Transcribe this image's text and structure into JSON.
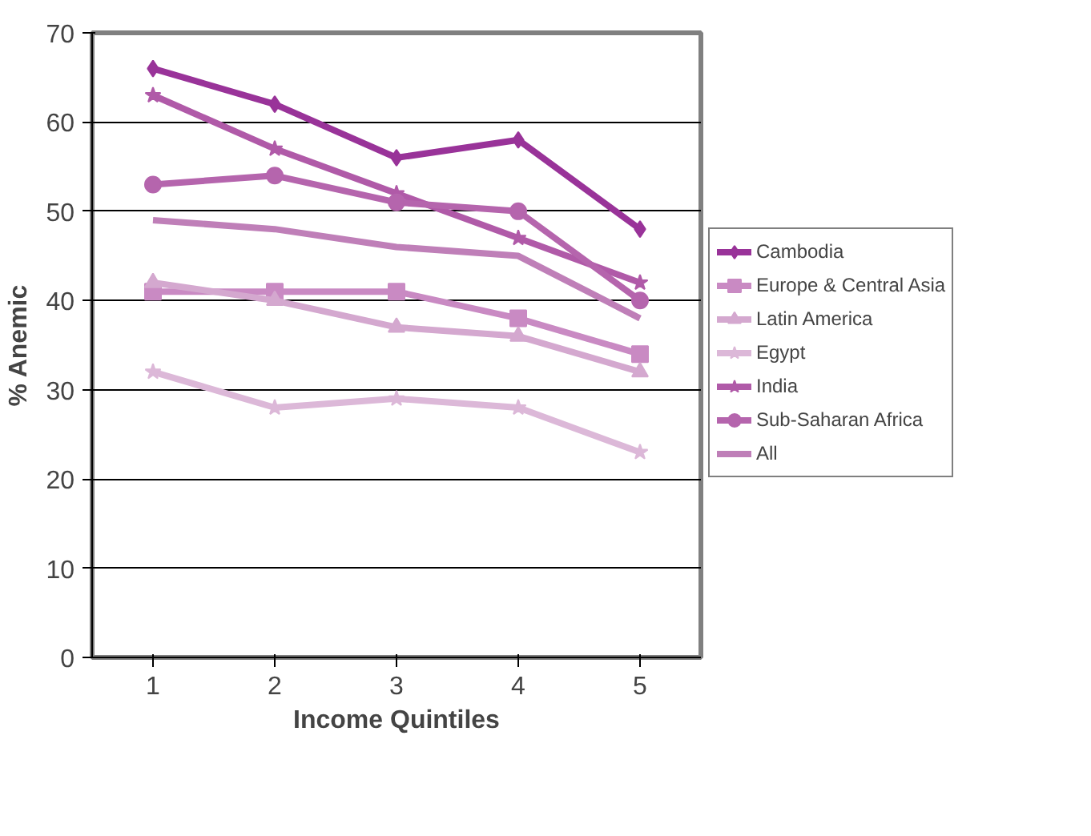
{
  "chart_data": {
    "type": "line",
    "xlabel": "Income Quintiles",
    "ylabel": "% Anemic",
    "x": [
      1,
      2,
      3,
      4,
      5
    ],
    "xlim": [
      0.5,
      5.5
    ],
    "xticks": [
      1,
      2,
      3,
      4,
      5
    ],
    "ylim": [
      0,
      70
    ],
    "yticks": [
      0,
      10,
      20,
      30,
      40,
      50,
      60,
      70
    ],
    "grid": "y",
    "legend": "right",
    "series": [
      {
        "name": "Cambodia",
        "color": "#993399",
        "marker": "diamond",
        "values": [
          66,
          62,
          56,
          58,
          48
        ]
      },
      {
        "name": "Europe & Central Asia",
        "color": "#c98ac3",
        "marker": "square",
        "values": [
          41,
          41,
          41,
          38,
          34
        ]
      },
      {
        "name": "Latin America",
        "color": "#d4a8cf",
        "marker": "triangle",
        "values": [
          42,
          40,
          37,
          36,
          32
        ]
      },
      {
        "name": "Egypt",
        "color": "#dcb8d8",
        "marker": "star",
        "values": [
          32,
          28,
          29,
          28,
          23
        ]
      },
      {
        "name": "India",
        "color": "#b05aa8",
        "marker": "star",
        "values": [
          63,
          57,
          52,
          47,
          42
        ]
      },
      {
        "name": "Sub-Saharan Africa",
        "color": "#b565ad",
        "marker": "circle",
        "values": [
          53,
          54,
          51,
          50,
          40
        ]
      },
      {
        "name": "All",
        "color": "#bf7fb8",
        "marker": "none",
        "values": [
          49,
          48,
          46,
          45,
          38
        ]
      }
    ]
  }
}
